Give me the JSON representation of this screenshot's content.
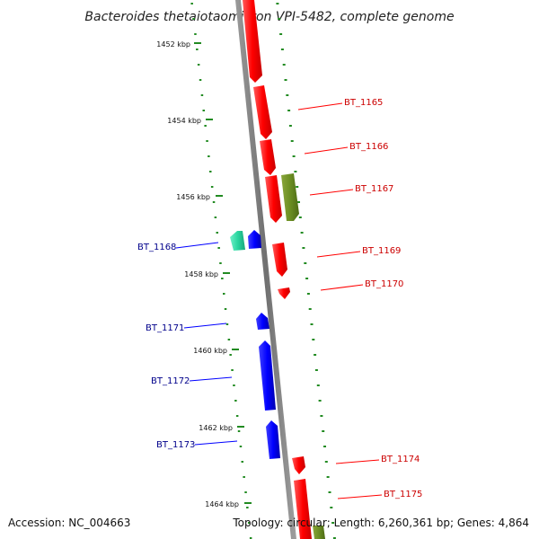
{
  "title": "Bacteroides thetaiotaomicron VPI-5482, complete genome",
  "accession": "Accession: NC_004663",
  "topology": "Topology: circular; Length: 6,260,361 bp; Genes: 4,864",
  "colors": {
    "backbone": "#808080",
    "ruler_ticks": "#228b22",
    "forward_gene": "#ff0000",
    "reverse_gene": "#0000ff",
    "rna_gene": "#6b8e23",
    "other_gene": "#2bd6a0",
    "forward_label": "#cc0000",
    "reverse_label": "#00008b"
  },
  "kbp_marks": [
    "1452 kbp",
    "1454 kbp",
    "1456 kbp",
    "1458 kbp",
    "1460 kbp",
    "1462 kbp",
    "1464 kbp"
  ],
  "gene_labels_forward": [
    "BT_1165",
    "BT_1166",
    "BT_1167",
    "BT_1169",
    "BT_1170",
    "BT_1174",
    "BT_1175"
  ],
  "gene_labels_reverse": [
    "BT_1168",
    "BT_1171",
    "BT_1172",
    "BT_1173"
  ]
}
